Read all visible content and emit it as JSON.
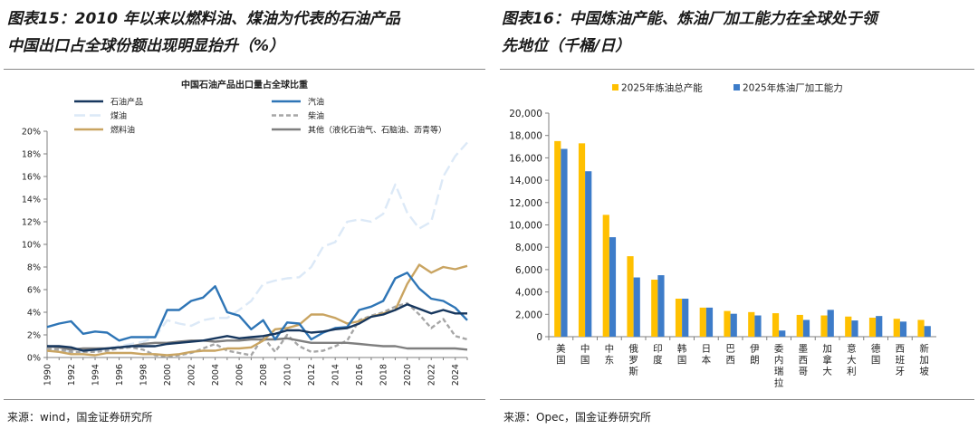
{
  "left": {
    "fig_title_line1": "图表15：2010 年以来以燃料油、煤油为代表的石油产品",
    "fig_title_line2": "中国出口占全球份额出现明显抬升（%）",
    "source": "来源：wind，国金证券研究所"
  },
  "right": {
    "fig_title_line1": "图表16：中国炼油产能、炼油厂加工能力在全球处于领",
    "fig_title_line2": "先地位（千桶/日）",
    "source": "来源：Opec，国金证券研究所"
  },
  "chart_data": [
    {
      "type": "line",
      "title": "中国石油产品出口量占全球比重",
      "x": [
        1990,
        1991,
        1992,
        1993,
        1994,
        1995,
        1996,
        1997,
        1998,
        1999,
        2000,
        2001,
        2002,
        2003,
        2004,
        2005,
        2006,
        2007,
        2008,
        2009,
        2010,
        2011,
        2012,
        2013,
        2014,
        2015,
        2016,
        2017,
        2018,
        2019,
        2020,
        2021,
        2022,
        2023,
        2024,
        2025
      ],
      "x_ticks": [
        "1990",
        "1992",
        "1994",
        "1996",
        "1998",
        "2000",
        "2002",
        "2004",
        "2006",
        "2008",
        "2010",
        "2012",
        "2014",
        "2016",
        "2018",
        "2020",
        "2022",
        "2024"
      ],
      "y_ticks": [
        "0%",
        "2%",
        "4%",
        "6%",
        "8%",
        "10%",
        "12%",
        "14%",
        "16%",
        "18%",
        "20%"
      ],
      "ylim": [
        0,
        20
      ],
      "grid": false,
      "legend_position": "top",
      "series": [
        {
          "name": "石油产品",
          "color": "#17375e",
          "dash": "solid",
          "values": [
            1.0,
            1.0,
            0.9,
            0.6,
            0.7,
            0.8,
            0.9,
            1.0,
            1.0,
            1.0,
            1.2,
            1.3,
            1.4,
            1.5,
            1.7,
            1.9,
            1.7,
            1.8,
            1.9,
            2.1,
            2.4,
            2.4,
            2.2,
            2.3,
            2.5,
            2.6,
            3.0,
            3.6,
            3.8,
            4.2,
            4.7,
            4.3,
            3.9,
            4.2,
            3.9,
            3.9
          ]
        },
        {
          "name": "汽油",
          "color": "#2e75b6",
          "dash": "solid",
          "values": [
            2.7,
            3.0,
            3.2,
            2.1,
            2.3,
            2.2,
            1.5,
            1.8,
            1.8,
            1.8,
            4.2,
            4.2,
            5.0,
            5.3,
            6.3,
            4.0,
            3.7,
            2.5,
            3.3,
            1.6,
            3.1,
            3.0,
            1.6,
            2.2,
            2.6,
            2.7,
            4.2,
            4.5,
            5.0,
            7.0,
            7.5,
            6.1,
            5.2,
            5.0,
            4.4,
            3.3
          ]
        },
        {
          "name": "煤油",
          "color": "#dce9f7",
          "dash": "longdash",
          "values": [
            0.6,
            0.6,
            0.5,
            0.5,
            0.6,
            0.8,
            1.0,
            1.2,
            1.4,
            1.8,
            3.3,
            3.0,
            2.8,
            3.3,
            3.5,
            3.5,
            4.2,
            5.0,
            6.5,
            6.8,
            7.0,
            7.1,
            8.0,
            9.8,
            10.2,
            12.0,
            12.2,
            12.0,
            12.7,
            15.3,
            12.8,
            11.4,
            12.0,
            16.0,
            17.8,
            19.0
          ]
        },
        {
          "name": "柴油",
          "color": "#a6a6a6",
          "dash": "dash",
          "values": [
            0.8,
            0.7,
            0.5,
            0.5,
            0.5,
            0.6,
            0.8,
            0.9,
            0.7,
            0.2,
            0.1,
            0.2,
            0.4,
            0.8,
            1.2,
            0.6,
            0.4,
            0.2,
            1.8,
            0.5,
            2.0,
            1.0,
            0.5,
            0.6,
            1.0,
            1.5,
            3.3,
            3.7,
            4.0,
            4.5,
            4.8,
            3.8,
            2.6,
            3.4,
            1.9,
            1.6
          ]
        },
        {
          "name": "燃料油",
          "color": "#c9a461",
          "dash": "solid",
          "values": [
            0.6,
            0.5,
            0.3,
            0.3,
            0.2,
            0.4,
            0.4,
            0.4,
            0.3,
            0.3,
            0.2,
            0.3,
            0.5,
            0.6,
            0.6,
            0.8,
            0.8,
            0.9,
            1.5,
            2.5,
            2.6,
            2.9,
            3.8,
            3.8,
            3.5,
            3.0,
            3.2,
            3.6,
            3.9,
            4.2,
            6.5,
            8.2,
            7.5,
            8.0,
            7.8,
            8.1
          ]
        },
        {
          "name": "其他（液化石油气、石脑油、沥青等）",
          "color": "#7f7f7f",
          "dash": "solid",
          "values": [
            1.0,
            0.9,
            0.7,
            0.8,
            0.8,
            0.8,
            0.9,
            1.0,
            1.2,
            1.3,
            1.3,
            1.4,
            1.5,
            1.5,
            1.4,
            1.5,
            1.5,
            1.6,
            1.6,
            1.6,
            1.7,
            1.5,
            1.3,
            1.3,
            1.3,
            1.3,
            1.2,
            1.1,
            1.0,
            1.0,
            0.8,
            0.8,
            0.8,
            0.8,
            0.8,
            0.7
          ]
        }
      ]
    },
    {
      "type": "bar",
      "categories": [
        "美国",
        "中国",
        "中东",
        "俄罗斯",
        "印度",
        "韩国",
        "日本",
        "巴西",
        "伊朗",
        "委内瑞拉",
        "墨西哥",
        "加拿大",
        "意大利",
        "德国",
        "西班牙",
        "新加坡"
      ],
      "y_ticks": [
        "0",
        "2,000",
        "4,000",
        "6,000",
        "8,000",
        "10,000",
        "12,000",
        "14,000",
        "16,000",
        "18,000",
        "20,000"
      ],
      "ylim": [
        0,
        20000
      ],
      "grid": false,
      "legend_position": "top",
      "series": [
        {
          "name": "2025年炼油总产能",
          "color": "#ffc000",
          "values": [
            17500,
            17300,
            10900,
            7200,
            5100,
            3400,
            2600,
            2300,
            2200,
            2100,
            1950,
            1900,
            1800,
            1700,
            1600,
            1500
          ]
        },
        {
          "name": "2025年炼油厂加工能力",
          "color": "#3d7cc9",
          "values": [
            16800,
            14800,
            8900,
            5300,
            5500,
            3400,
            2600,
            2050,
            1900,
            550,
            1500,
            2400,
            1450,
            1850,
            1350,
            950
          ]
        }
      ]
    }
  ]
}
